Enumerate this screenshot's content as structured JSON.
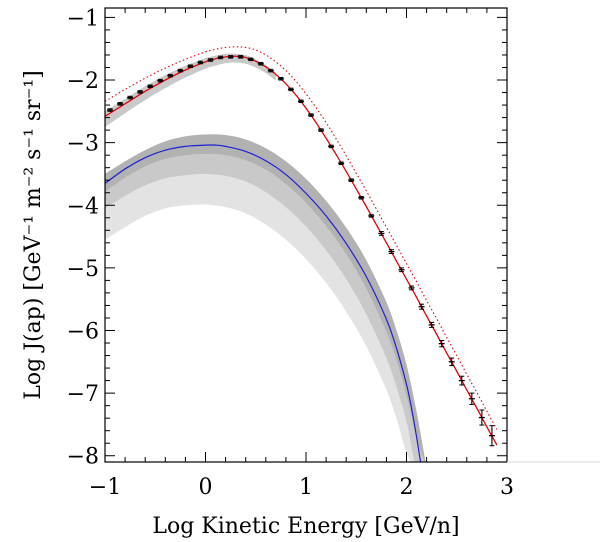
{
  "chart_data": {
    "type": "line",
    "xlabel": "Log Kinetic Energy [GeV/n]",
    "ylabel": "Log J(ap) [GeV⁻¹ m⁻² s⁻¹ sr⁻¹]",
    "xlim": [
      -1,
      3
    ],
    "ylim": [
      -8.1,
      -0.85
    ],
    "xticks": [
      "−1",
      "0",
      "1",
      "2",
      "3"
    ],
    "yticks": [
      "−1",
      "−2",
      "−3",
      "−4",
      "−5",
      "−6",
      "−7",
      "−8"
    ],
    "grid": false,
    "colors": {
      "red": "#e8000b",
      "blue": "#1f1fd6",
      "band_light": "#e3e3e3",
      "band_mid": "#c9c9c9",
      "band_dark": "#b2b2b2",
      "points": "#000000"
    },
    "series": [
      {
        "style": "solid-red",
        "x": [
          -1.0,
          -0.8,
          -0.6,
          -0.4,
          -0.2,
          0.0,
          0.1,
          0.2,
          0.3,
          0.4,
          0.5,
          0.6,
          0.7,
          0.8,
          0.9,
          1.0,
          1.1,
          1.2,
          1.3,
          1.4,
          1.5,
          1.6,
          1.7,
          1.8,
          1.9,
          2.0,
          2.1,
          2.2,
          2.3,
          2.4,
          2.5,
          2.6,
          2.7,
          2.8,
          2.9
        ],
        "y": [
          -2.58,
          -2.38,
          -2.18,
          -2.0,
          -1.84,
          -1.71,
          -1.66,
          -1.63,
          -1.62,
          -1.64,
          -1.7,
          -1.79,
          -1.91,
          -2.06,
          -2.24,
          -2.45,
          -2.68,
          -2.93,
          -3.19,
          -3.46,
          -3.74,
          -4.02,
          -4.31,
          -4.6,
          -4.89,
          -5.18,
          -5.47,
          -5.77,
          -6.06,
          -6.36,
          -6.65,
          -6.95,
          -7.24,
          -7.54,
          -7.83
        ]
      },
      {
        "style": "dotted-red",
        "x": [
          -1.0,
          -0.8,
          -0.6,
          -0.4,
          -0.2,
          0.0,
          0.1,
          0.2,
          0.3,
          0.4,
          0.5,
          0.6,
          0.7,
          0.8,
          0.9,
          1.0,
          1.1,
          1.2,
          1.3,
          1.4,
          1.5,
          1.6,
          1.7,
          1.8,
          1.9,
          2.0,
          2.1,
          2.2,
          2.3,
          2.4,
          2.5,
          2.6,
          2.7,
          2.8,
          2.9
        ],
        "y": [
          -2.34,
          -2.15,
          -1.97,
          -1.81,
          -1.67,
          -1.55,
          -1.51,
          -1.48,
          -1.47,
          -1.48,
          -1.52,
          -1.6,
          -1.71,
          -1.85,
          -2.02,
          -2.22,
          -2.44,
          -2.68,
          -2.94,
          -3.21,
          -3.49,
          -3.77,
          -4.06,
          -4.35,
          -4.64,
          -4.93,
          -5.22,
          -5.52,
          -5.81,
          -6.11,
          -6.4,
          -6.7,
          -6.99,
          -7.29,
          -7.58
        ]
      },
      {
        "style": "solid-blue",
        "x": [
          -1.0,
          -0.8,
          -0.6,
          -0.4,
          -0.2,
          0.0,
          0.1,
          0.2,
          0.4,
          0.6,
          0.8,
          1.0,
          1.2,
          1.4,
          1.6,
          1.8,
          1.9,
          2.0,
          2.05,
          2.1,
          2.15
        ],
        "y": [
          -3.65,
          -3.42,
          -3.24,
          -3.12,
          -3.06,
          -3.04,
          -3.04,
          -3.06,
          -3.14,
          -3.29,
          -3.51,
          -3.81,
          -4.17,
          -4.61,
          -5.14,
          -5.82,
          -6.28,
          -6.86,
          -7.24,
          -7.7,
          -8.2
        ]
      }
    ],
    "bands": [
      {
        "level": "light",
        "x": [
          -1.0,
          -0.8,
          -0.6,
          -0.4,
          -0.2,
          0.0,
          0.2,
          0.4,
          0.6,
          0.8,
          1.0,
          1.2,
          1.4,
          1.6,
          1.8,
          1.9,
          2.0,
          2.1,
          2.2
        ],
        "upper": [
          -3.5,
          -3.3,
          -3.12,
          -2.98,
          -2.9,
          -2.87,
          -2.88,
          -2.95,
          -3.09,
          -3.3,
          -3.58,
          -3.93,
          -4.36,
          -4.88,
          -5.55,
          -6.0,
          -6.55,
          -7.3,
          -8.2
        ],
        "lower": [
          -4.55,
          -4.35,
          -4.17,
          -4.05,
          -4.0,
          -3.99,
          -4.03,
          -4.13,
          -4.31,
          -4.55,
          -4.86,
          -5.24,
          -5.7,
          -6.25,
          -6.95,
          -7.4,
          -7.95,
          -8.2,
          -8.2
        ]
      },
      {
        "level": "mid",
        "x": [
          -1.0,
          -0.8,
          -0.6,
          -0.4,
          -0.2,
          0.0,
          0.2,
          0.4,
          0.6,
          0.8,
          1.0,
          1.2,
          1.4,
          1.6,
          1.8,
          1.9,
          2.0,
          2.1,
          2.2
        ],
        "upper": [
          -3.5,
          -3.3,
          -3.12,
          -2.98,
          -2.9,
          -2.87,
          -2.88,
          -2.95,
          -3.09,
          -3.3,
          -3.58,
          -3.93,
          -4.36,
          -4.88,
          -5.55,
          -6.0,
          -6.55,
          -7.3,
          -8.2
        ],
        "lower": [
          -4.05,
          -3.85,
          -3.68,
          -3.57,
          -3.52,
          -3.5,
          -3.53,
          -3.62,
          -3.79,
          -4.03,
          -4.34,
          -4.72,
          -5.18,
          -5.74,
          -6.44,
          -6.9,
          -7.45,
          -8.2,
          -8.2
        ]
      },
      {
        "level": "dark",
        "x": [
          -1.0,
          -0.8,
          -0.6,
          -0.4,
          -0.2,
          0.0,
          0.2,
          0.4,
          0.6,
          0.8,
          1.0,
          1.2,
          1.4,
          1.6,
          1.8,
          1.9,
          2.0,
          2.1,
          2.2
        ],
        "upper": [
          -3.5,
          -3.3,
          -3.12,
          -2.98,
          -2.9,
          -2.87,
          -2.88,
          -2.95,
          -3.09,
          -3.3,
          -3.58,
          -3.93,
          -4.36,
          -4.88,
          -5.55,
          -6.0,
          -6.55,
          -7.3,
          -8.2
        ],
        "lower": [
          -3.78,
          -3.56,
          -3.38,
          -3.26,
          -3.2,
          -3.18,
          -3.2,
          -3.28,
          -3.43,
          -3.66,
          -3.96,
          -4.33,
          -4.78,
          -5.33,
          -6.02,
          -6.47,
          -7.03,
          -7.7,
          -8.2
        ]
      },
      {
        "level": "upper-band",
        "x": [
          -1.0,
          -0.8,
          -0.6,
          -0.4,
          -0.2,
          0.0,
          0.1,
          0.2,
          0.3,
          0.4,
          0.5,
          0.6,
          0.7
        ],
        "upper": [
          -2.5,
          -2.3,
          -2.1,
          -1.92,
          -1.77,
          -1.65,
          -1.61,
          -1.58,
          -1.58,
          -1.6,
          -1.67,
          -1.76,
          -1.88
        ],
        "lower": [
          -2.75,
          -2.53,
          -2.32,
          -2.13,
          -1.96,
          -1.82,
          -1.77,
          -1.73,
          -1.72,
          -1.74,
          -1.8,
          -1.89,
          -2.01
        ]
      }
    ],
    "points": {
      "x": [
        -0.95,
        -0.85,
        -0.75,
        -0.65,
        -0.55,
        -0.45,
        -0.35,
        -0.25,
        -0.15,
        -0.05,
        0.05,
        0.15,
        0.25,
        0.35,
        0.45,
        0.55,
        0.65,
        0.75,
        0.85,
        0.95,
        1.05,
        1.15,
        1.25,
        1.35,
        1.45,
        1.55,
        1.65,
        1.75,
        1.85,
        1.95,
        2.05,
        2.15,
        2.25,
        2.35,
        2.45,
        2.55,
        2.65,
        2.75,
        2.85
      ],
      "y": [
        -2.48,
        -2.38,
        -2.28,
        -2.19,
        -2.1,
        -2.01,
        -1.93,
        -1.85,
        -1.78,
        -1.72,
        -1.68,
        -1.64,
        -1.63,
        -1.63,
        -1.67,
        -1.74,
        -1.85,
        -1.98,
        -2.15,
        -2.34,
        -2.56,
        -2.8,
        -3.06,
        -3.33,
        -3.6,
        -3.88,
        -4.17,
        -4.45,
        -4.74,
        -5.03,
        -5.32,
        -5.62,
        -5.91,
        -6.21,
        -6.5,
        -6.8,
        -7.09,
        -7.39,
        -7.68
      ],
      "err": [
        0.02,
        0.02,
        0.02,
        0.02,
        0.02,
        0.02,
        0.02,
        0.02,
        0.02,
        0.02,
        0.02,
        0.02,
        0.02,
        0.02,
        0.02,
        0.02,
        0.02,
        0.02,
        0.02,
        0.02,
        0.02,
        0.02,
        0.02,
        0.02,
        0.02,
        0.02,
        0.02,
        0.03,
        0.03,
        0.03,
        0.03,
        0.04,
        0.04,
        0.05,
        0.06,
        0.07,
        0.09,
        0.12,
        0.16
      ]
    }
  }
}
